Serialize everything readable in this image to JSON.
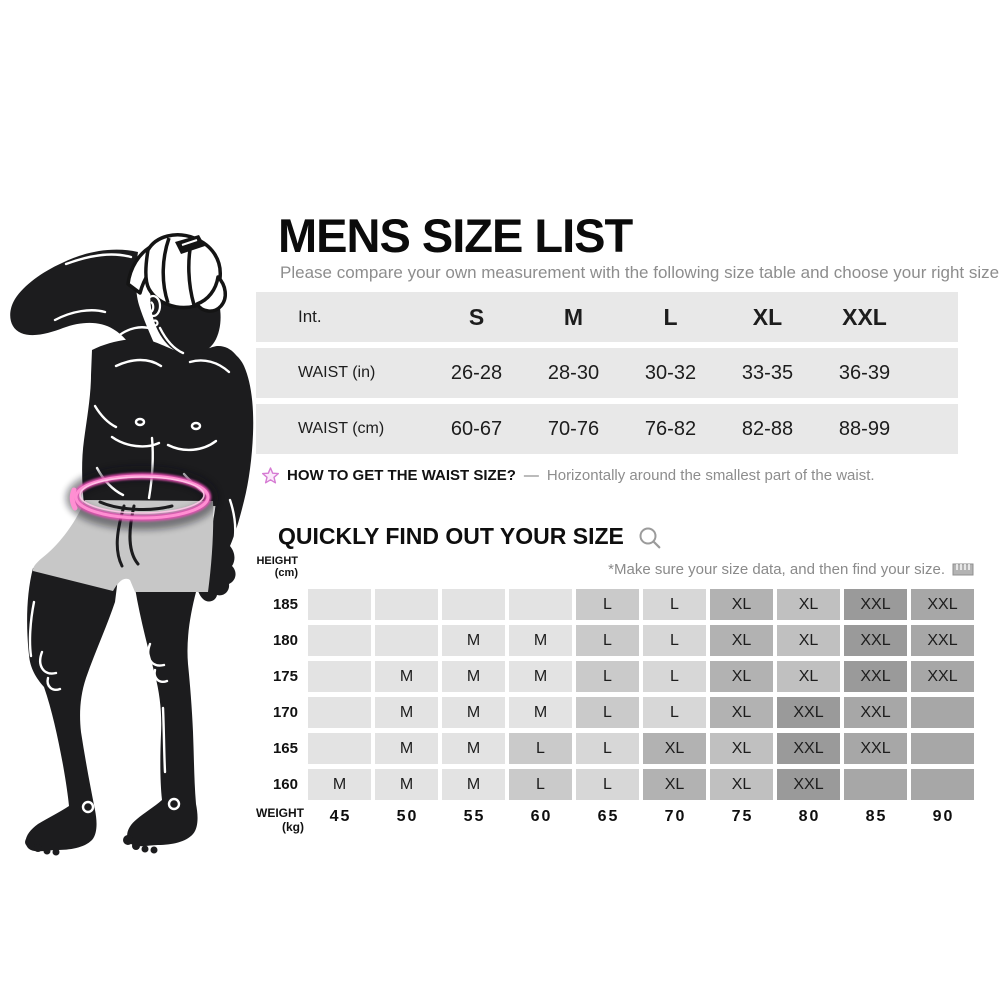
{
  "title": "MENS SIZE LIST",
  "subtitle": "Please compare your own measurement with the following size table and choose your right size.",
  "size_table": {
    "band_color": "#e8e8e8",
    "header_label": "Int.",
    "sizes": [
      "S",
      "M",
      "L",
      "XL",
      "XXL"
    ],
    "rows": [
      {
        "label": "WAIST (in)",
        "values": [
          "26-28",
          "28-30",
          "30-32",
          "33-35",
          "36-39"
        ]
      },
      {
        "label": "WAIST (cm)",
        "values": [
          "60-67",
          "70-76",
          "76-82",
          "82-88",
          "88-99"
        ]
      }
    ]
  },
  "waist_tip": {
    "icon": "star-icon",
    "bold": "HOW TO GET THE WAIST SIZE?",
    "dash": "—",
    "text": "Horizontally around the smallest part of the waist."
  },
  "finder": {
    "heading": "QUICKLY FIND OUT YOUR SIZE",
    "heading_icon": "magnifier-icon",
    "note": "*Make sure your size data, and then find your size.",
    "note_icon": "ruler-icon",
    "height_axis": {
      "line1": "HEIGHT",
      "line2": "(cm)"
    },
    "weight_axis": {
      "line1": "WEIGHT",
      "line2": "(kg)"
    },
    "weights": [
      "45",
      "50",
      "55",
      "60",
      "65",
      "70",
      "75",
      "80",
      "85",
      "90"
    ],
    "filled_empty_sentinel": "x",
    "rows": [
      {
        "height": "185",
        "cells": [
          "",
          "",
          "",
          "",
          "L",
          "L",
          "XL",
          "XL",
          "XXL",
          "XXL"
        ]
      },
      {
        "height": "180",
        "cells": [
          "",
          "",
          "M",
          "M",
          "L",
          "L",
          "XL",
          "XL",
          "XXL",
          "XXL"
        ]
      },
      {
        "height": "175",
        "cells": [
          "",
          "M",
          "M",
          "M",
          "L",
          "L",
          "XL",
          "XL",
          "XXL",
          "XXL"
        ]
      },
      {
        "height": "170",
        "cells": [
          "",
          "M",
          "M",
          "M",
          "L",
          "L",
          "XL",
          "XXL",
          "XXL",
          "x"
        ]
      },
      {
        "height": "165",
        "cells": [
          "",
          "M",
          "M",
          "L",
          "L",
          "XL",
          "XL",
          "XXL",
          "XXL",
          "x"
        ]
      },
      {
        "height": "160",
        "cells": [
          "M",
          "M",
          "M",
          "L",
          "L",
          "XL",
          "XL",
          "XXL",
          "x",
          "x"
        ]
      }
    ],
    "cell_colors": {
      "empty": "#e3e3e3",
      "M": "#e3e3e3",
      "L": "#d7d7d7",
      "L_first": "#cacaca",
      "XL": "#c0c0c0",
      "XL_first": "#b2b2b2",
      "XXL": "#a7a7a7",
      "XXL_first": "#9a9a9a",
      "filled_empty": "#a7a7a7"
    }
  },
  "colors": {
    "accent_pink": "#ff8fd2",
    "accent_pink_deep": "#e44fb2",
    "icon_gray": "#9b9b9b",
    "silhouette": "#1c1c1e",
    "trunks_gray": "#c7c7c7"
  }
}
